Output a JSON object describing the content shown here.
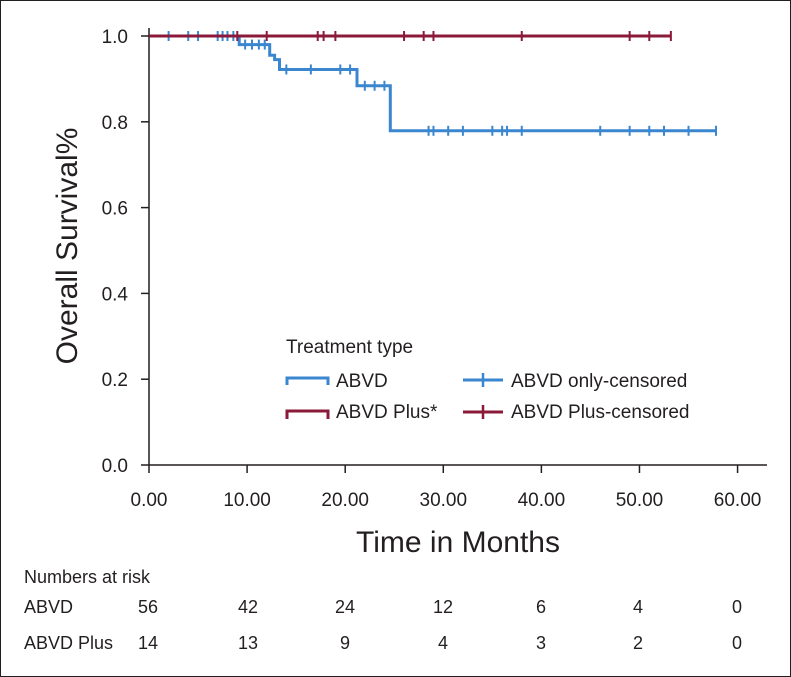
{
  "chart_data": {
    "type": "kaplan-meier",
    "xlabel": "Time in Months",
    "ylabel": "Overall Survival%",
    "xlim": [
      0,
      63
    ],
    "ylim": [
      0,
      1.0
    ],
    "xticks": [
      0,
      10,
      20,
      30,
      40,
      50,
      60
    ],
    "xtick_labels": [
      "0.00",
      "10.00",
      "20.00",
      "30.00",
      "40.00",
      "50.00",
      "60.00"
    ],
    "yticks": [
      0,
      0.2,
      0.4,
      0.6,
      0.8,
      1.0
    ],
    "ytick_labels": [
      "0.0",
      "0.2",
      "0.4",
      "0.6",
      "0.8",
      "1.0"
    ],
    "legend_title": "Treatment type",
    "legend_placement": "lower-center",
    "series": [
      {
        "name": "ABVD",
        "censored_name": "ABVD only-censored",
        "color": "#3a86cf",
        "steps": [
          [
            0,
            1.0
          ],
          [
            9.2,
            1.0
          ],
          [
            9.2,
            0.98
          ],
          [
            12.3,
            0.98
          ],
          [
            12.3,
            0.955
          ],
          [
            12.8,
            0.955
          ],
          [
            12.8,
            0.945
          ],
          [
            13.3,
            0.945
          ],
          [
            13.3,
            0.922
          ],
          [
            21.2,
            0.922
          ],
          [
            21.2,
            0.884
          ],
          [
            24.6,
            0.884
          ],
          [
            24.6,
            0.779
          ],
          [
            57.8,
            0.779
          ]
        ],
        "censored": [
          [
            2.0,
            1.0
          ],
          [
            4.0,
            1.0
          ],
          [
            5.0,
            1.0
          ],
          [
            7.0,
            1.0
          ],
          [
            7.5,
            1.0
          ],
          [
            8.0,
            1.0
          ],
          [
            8.6,
            1.0
          ],
          [
            9.8,
            0.98
          ],
          [
            10.5,
            0.98
          ],
          [
            11.2,
            0.98
          ],
          [
            11.8,
            0.98
          ],
          [
            14.0,
            0.922
          ],
          [
            16.5,
            0.922
          ],
          [
            19.5,
            0.922
          ],
          [
            20.5,
            0.922
          ],
          [
            22.0,
            0.884
          ],
          [
            23.0,
            0.884
          ],
          [
            24.0,
            0.884
          ],
          [
            28.5,
            0.779
          ],
          [
            29.0,
            0.779
          ],
          [
            30.5,
            0.779
          ],
          [
            32.0,
            0.779
          ],
          [
            35.0,
            0.779
          ],
          [
            36.0,
            0.779
          ],
          [
            36.5,
            0.779
          ],
          [
            38.0,
            0.779
          ],
          [
            46.0,
            0.779
          ],
          [
            49.0,
            0.779
          ],
          [
            51.0,
            0.779
          ],
          [
            52.5,
            0.779
          ],
          [
            55.0,
            0.779
          ],
          [
            57.8,
            0.779
          ]
        ]
      },
      {
        "name": "ABVD Plus*",
        "censored_name": "ABVD Plus-censored",
        "color": "#8b1a3a",
        "steps": [
          [
            0,
            1.0
          ],
          [
            53.2,
            1.0
          ]
        ],
        "censored": [
          [
            9.0,
            1.0
          ],
          [
            12.0,
            1.0
          ],
          [
            17.2,
            1.0
          ],
          [
            17.8,
            1.0
          ],
          [
            19.0,
            1.0
          ],
          [
            26.0,
            1.0
          ],
          [
            28.0,
            1.0
          ],
          [
            29.0,
            1.0
          ],
          [
            38.0,
            1.0
          ],
          [
            49.0,
            1.0
          ],
          [
            51.0,
            1.0
          ],
          [
            53.2,
            1.0
          ]
        ]
      }
    ]
  },
  "risk_table": {
    "title": "Numbers at risk",
    "rows": [
      {
        "label": "ABVD",
        "values": [
          "56",
          "42",
          "24",
          "12",
          "6",
          "4",
          "0"
        ]
      },
      {
        "label": "ABVD Plus",
        "values": [
          "14",
          "13",
          "9",
          "4",
          "3",
          "2",
          "0"
        ]
      }
    ]
  }
}
